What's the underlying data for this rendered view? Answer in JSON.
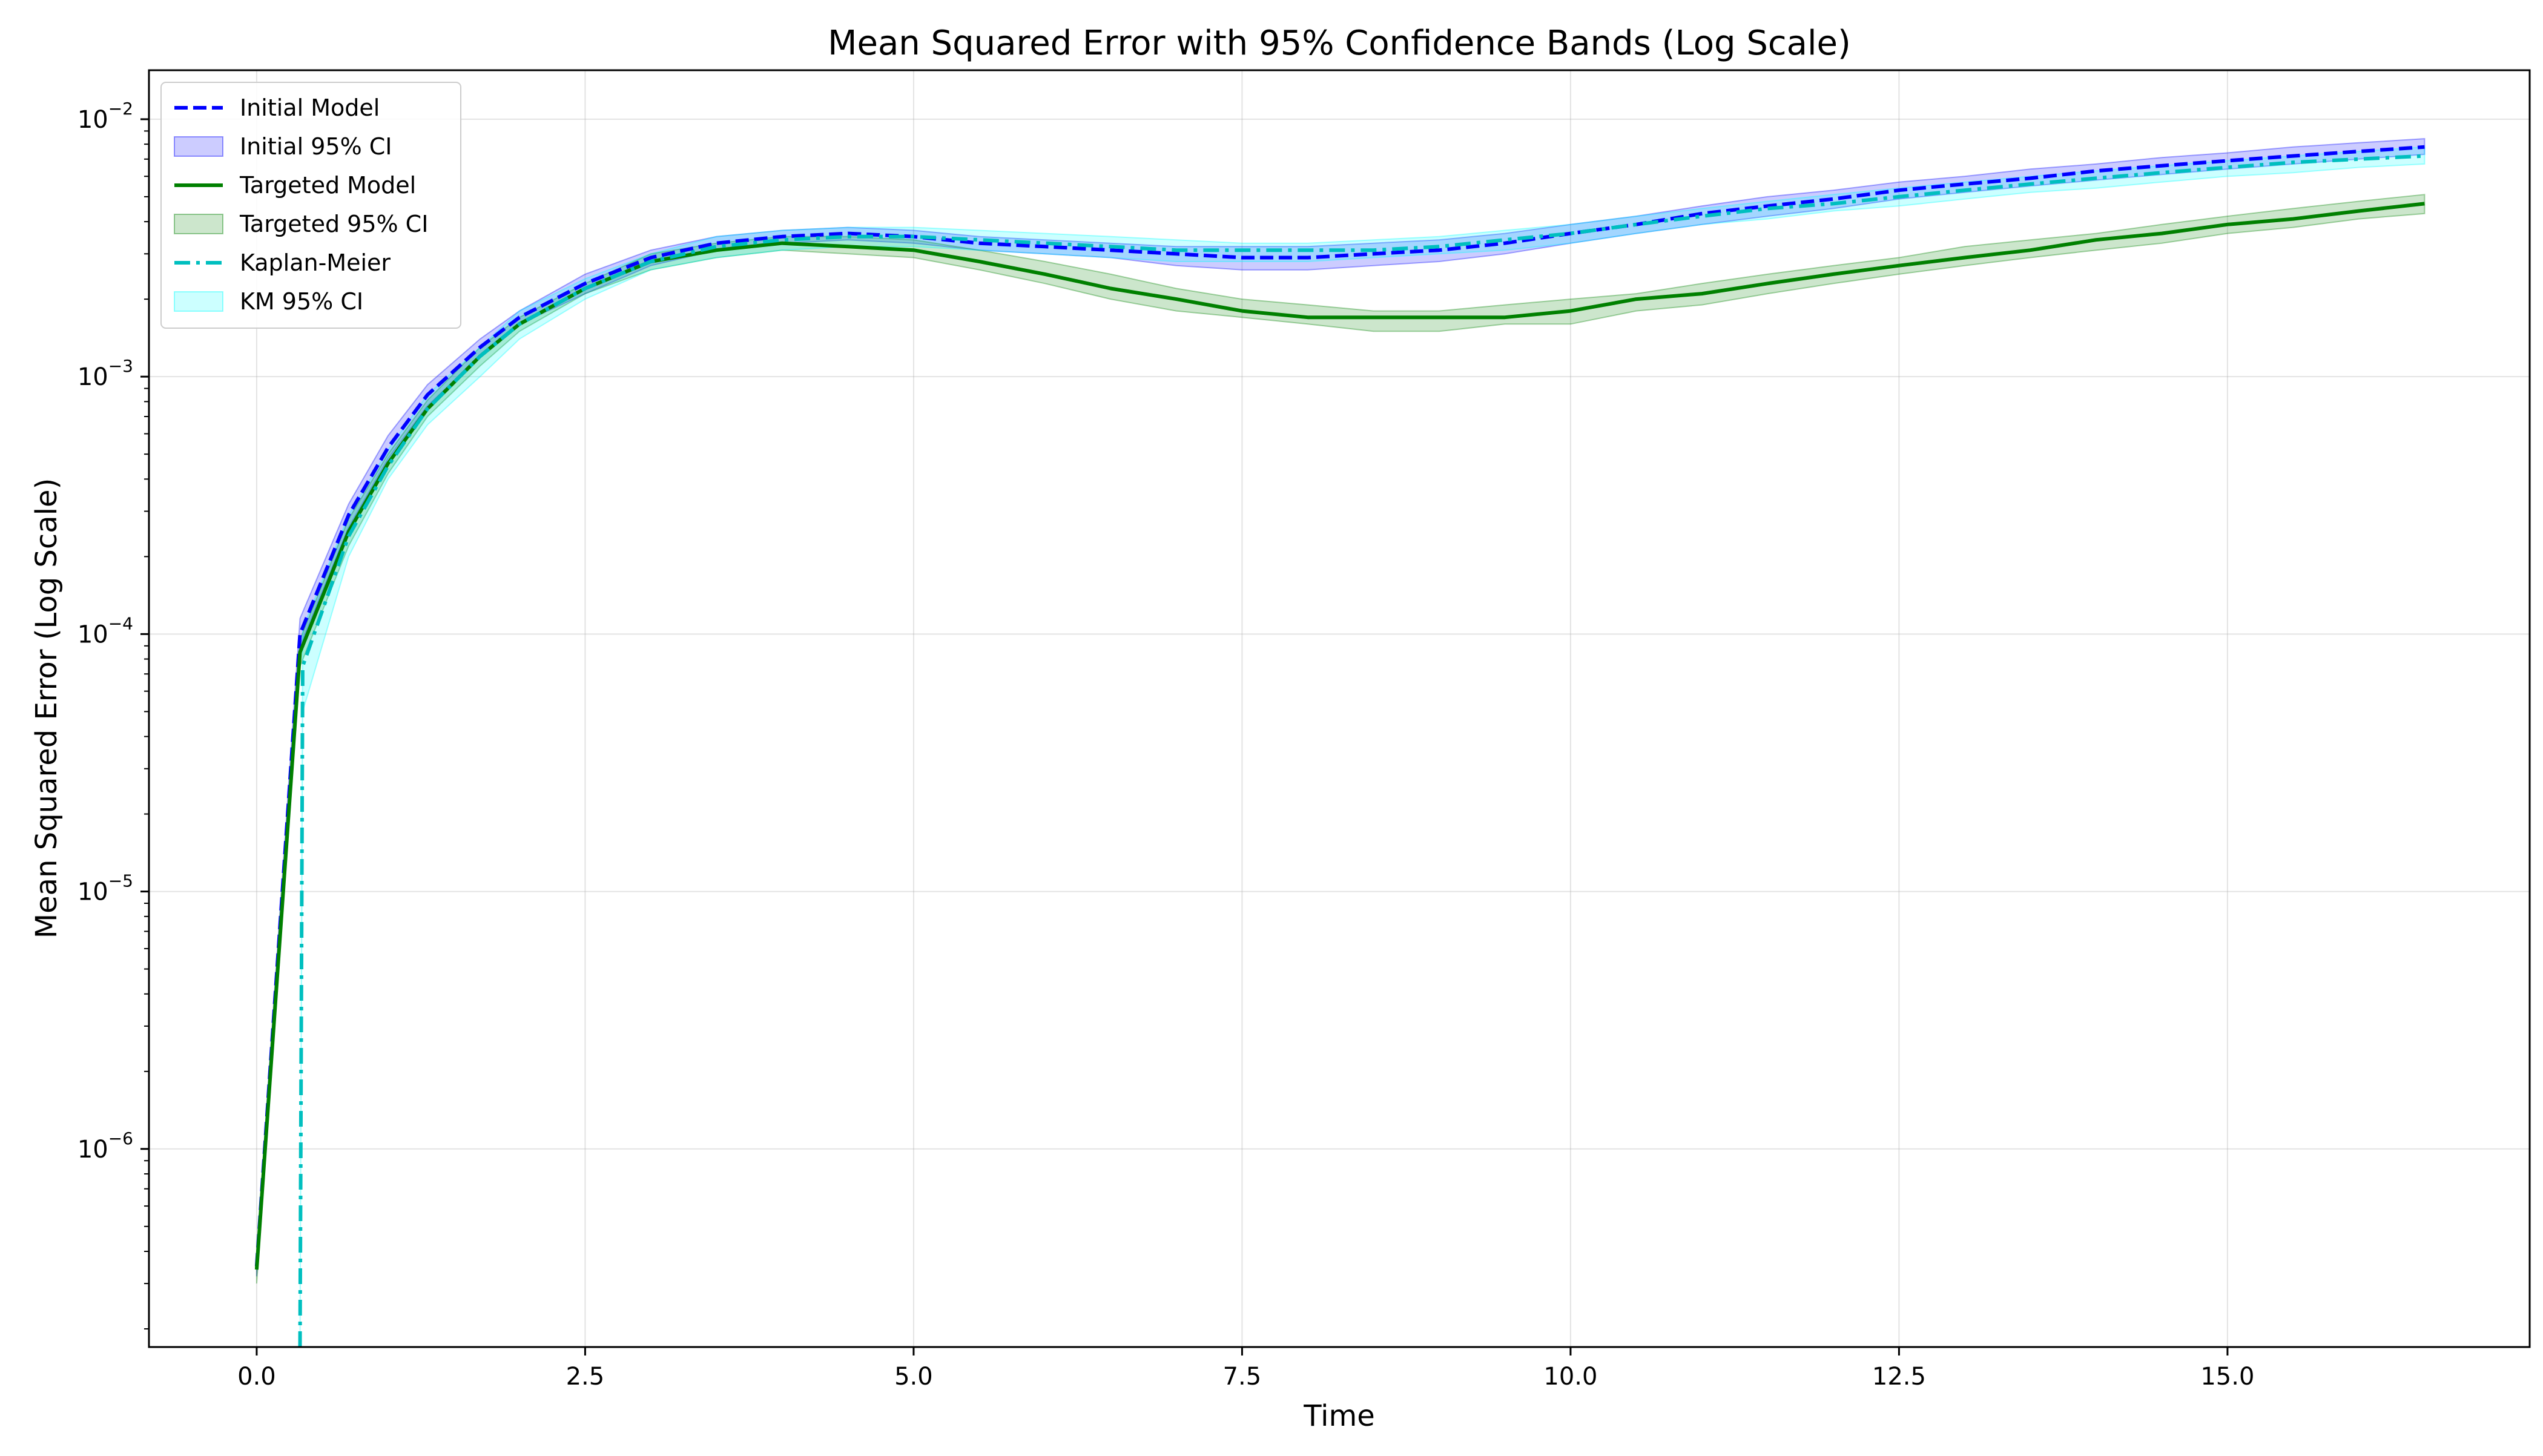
{
  "chart_data": {
    "type": "line",
    "title": "Mean Squared Error with 95% Confidence Bands (Log Scale)",
    "xlabel": "Time",
    "ylabel": "Mean Squared Error (Log Scale)",
    "xlim": [
      -0.82,
      17.3
    ],
    "ylim": [
      1.7e-07,
      0.0155
    ],
    "yscale": "log",
    "grid": true,
    "legend_position": "upper left",
    "x_ticks": [
      0.0,
      2.5,
      5.0,
      7.5,
      10.0,
      12.5,
      15.0
    ],
    "x_tick_labels": [
      "0.0",
      "2.5",
      "5.0",
      "7.5",
      "10.0",
      "12.5",
      "15.0"
    ],
    "y_ticks": [
      {
        "value": 1e-06,
        "base": "10",
        "exp": "−6"
      },
      {
        "value": 1e-05,
        "base": "10",
        "exp": "−5"
      },
      {
        "value": 0.0001,
        "base": "10",
        "exp": "−4"
      },
      {
        "value": 0.001,
        "base": "10",
        "exp": "−3"
      },
      {
        "value": 0.01,
        "base": "10",
        "exp": "−2"
      }
    ],
    "series": [
      {
        "name": "Initial Model",
        "color": "#0000ff",
        "style": "dashed",
        "x": [
          0,
          0.33,
          0.7,
          1.0,
          1.3,
          1.7,
          2.0,
          2.5,
          3.0,
          3.5,
          4.0,
          4.5,
          5.0,
          5.5,
          6.0,
          6.5,
          7.0,
          7.5,
          8.0,
          8.5,
          9.0,
          9.5,
          10.0,
          10.5,
          11.0,
          11.5,
          12.0,
          12.5,
          13.0,
          13.5,
          14.0,
          14.5,
          15.0,
          15.5,
          16.0,
          16.5
        ],
        "y": [
          3.5e-07,
          0.0001,
          0.00029,
          0.00053,
          0.00085,
          0.0013,
          0.0017,
          0.0023,
          0.0029,
          0.0033,
          0.0035,
          0.0036,
          0.0035,
          0.0033,
          0.0032,
          0.0031,
          0.003,
          0.0029,
          0.0029,
          0.003,
          0.0031,
          0.0033,
          0.0036,
          0.0039,
          0.0043,
          0.0046,
          0.0049,
          0.0053,
          0.0056,
          0.0059,
          0.0063,
          0.0066,
          0.0069,
          0.0072,
          0.0075,
          0.0078
        ]
      },
      {
        "name": "Targeted Model",
        "color": "#008000",
        "style": "solid",
        "x": [
          0,
          0.33,
          0.7,
          1.0,
          1.3,
          1.7,
          2.0,
          2.5,
          3.0,
          3.5,
          4.0,
          4.5,
          5.0,
          5.5,
          6.0,
          6.5,
          7.0,
          7.5,
          8.0,
          8.5,
          9.0,
          9.5,
          10.0,
          10.5,
          11.0,
          11.5,
          12.0,
          12.5,
          13.0,
          13.5,
          14.0,
          14.5,
          15.0,
          15.5,
          16.0,
          16.5
        ],
        "y": [
          3.4e-07,
          8.5e-05,
          0.00025,
          0.00046,
          0.00075,
          0.0012,
          0.0016,
          0.0022,
          0.0028,
          0.0031,
          0.0033,
          0.0032,
          0.0031,
          0.0028,
          0.0025,
          0.0022,
          0.002,
          0.0018,
          0.0017,
          0.0017,
          0.0017,
          0.0017,
          0.0018,
          0.002,
          0.0021,
          0.0023,
          0.0025,
          0.0027,
          0.0029,
          0.0031,
          0.0034,
          0.0036,
          0.0039,
          0.0041,
          0.0044,
          0.0047
        ]
      },
      {
        "name": "Kaplan-Meier",
        "color": "#00bfbf",
        "style": "dashdot",
        "x": [
          0.33,
          0.35,
          0.7,
          1.0,
          1.3,
          1.7,
          2.0,
          2.5,
          3.0,
          3.5,
          4.0,
          4.5,
          5.0,
          5.5,
          6.0,
          6.5,
          7.0,
          7.5,
          8.0,
          8.5,
          9.0,
          9.5,
          10.0,
          10.5,
          11.0,
          11.5,
          12.0,
          12.5,
          13.0,
          13.5,
          14.0,
          14.5,
          15.0,
          15.5,
          16.0,
          16.5
        ],
        "y": [
          1.7e-07,
          7.5e-05,
          0.00024,
          0.00045,
          0.00075,
          0.0012,
          0.0016,
          0.0022,
          0.0028,
          0.0032,
          0.0034,
          0.0035,
          0.0035,
          0.0034,
          0.0033,
          0.0032,
          0.0031,
          0.0031,
          0.0031,
          0.0031,
          0.0032,
          0.0034,
          0.0036,
          0.0039,
          0.0042,
          0.0045,
          0.0047,
          0.005,
          0.0053,
          0.0056,
          0.0059,
          0.0062,
          0.0065,
          0.0068,
          0.007,
          0.0072
        ]
      }
    ],
    "bands": [
      {
        "name": "Initial 95% CI",
        "color": "#0000ff",
        "opacity": 0.2,
        "x": [
          0,
          0.33,
          0.7,
          1.0,
          1.3,
          1.7,
          2.0,
          2.5,
          3.0,
          3.5,
          4.0,
          4.5,
          5.0,
          5.5,
          6.0,
          6.5,
          7.0,
          7.5,
          8.0,
          8.5,
          9.0,
          9.5,
          10.0,
          10.5,
          11.0,
          11.5,
          12.0,
          12.5,
          13.0,
          13.5,
          14.0,
          14.5,
          15.0,
          15.5,
          16.0,
          16.5
        ],
        "lower": [
          3.2e-07,
          9e-05,
          0.00026,
          0.00048,
          0.00077,
          0.0012,
          0.0016,
          0.0021,
          0.0027,
          0.0031,
          0.0033,
          0.0034,
          0.0033,
          0.0031,
          0.003,
          0.0029,
          0.0027,
          0.0026,
          0.0026,
          0.0027,
          0.0028,
          0.003,
          0.0033,
          0.0036,
          0.0039,
          0.0042,
          0.0045,
          0.0049,
          0.0052,
          0.0055,
          0.0058,
          0.0061,
          0.0064,
          0.0067,
          0.007,
          0.0073
        ],
        "upper": [
          3.9e-07,
          0.000115,
          0.00032,
          0.00059,
          0.00093,
          0.0014,
          0.0018,
          0.0025,
          0.0031,
          0.0035,
          0.0037,
          0.0038,
          0.0037,
          0.0035,
          0.0034,
          0.0033,
          0.0032,
          0.0032,
          0.0032,
          0.0033,
          0.0034,
          0.0036,
          0.0039,
          0.0042,
          0.0046,
          0.005,
          0.0053,
          0.0057,
          0.006,
          0.0064,
          0.0067,
          0.0071,
          0.0074,
          0.0078,
          0.0081,
          0.0084
        ]
      },
      {
        "name": "Targeted 95% CI",
        "color": "#008000",
        "opacity": 0.2,
        "x": [
          0,
          0.33,
          0.7,
          1.0,
          1.3,
          1.7,
          2.0,
          2.5,
          3.0,
          3.5,
          4.0,
          4.5,
          5.0,
          5.5,
          6.0,
          6.5,
          7.0,
          7.5,
          8.0,
          8.5,
          9.0,
          9.5,
          10.0,
          10.5,
          11.0,
          11.5,
          12.0,
          12.5,
          13.0,
          13.5,
          14.0,
          14.5,
          15.0,
          15.5,
          16.0,
          16.5
        ],
        "lower": [
          3e-07,
          7.5e-05,
          0.00022,
          0.00042,
          0.0007,
          0.0011,
          0.0015,
          0.0021,
          0.0026,
          0.0029,
          0.0031,
          0.003,
          0.0029,
          0.0026,
          0.0023,
          0.002,
          0.0018,
          0.0017,
          0.0016,
          0.0015,
          0.0015,
          0.0016,
          0.0016,
          0.0018,
          0.0019,
          0.0021,
          0.0023,
          0.0025,
          0.0027,
          0.0029,
          0.0031,
          0.0033,
          0.0036,
          0.0038,
          0.0041,
          0.0043
        ],
        "upper": [
          3.8e-07,
          9.5e-05,
          0.00028,
          0.0005,
          0.00081,
          0.0013,
          0.0017,
          0.0023,
          0.003,
          0.0033,
          0.0035,
          0.0035,
          0.0034,
          0.0031,
          0.0028,
          0.0025,
          0.0022,
          0.002,
          0.0019,
          0.0018,
          0.0018,
          0.0019,
          0.002,
          0.0021,
          0.0023,
          0.0025,
          0.0027,
          0.0029,
          0.0032,
          0.0034,
          0.0036,
          0.0039,
          0.0042,
          0.0045,
          0.0048,
          0.0051
        ]
      },
      {
        "name": "KM 95% CI",
        "color": "#00ffff",
        "opacity": 0.2,
        "x": [
          0.33,
          0.35,
          0.7,
          1.0,
          1.3,
          1.7,
          2.0,
          2.5,
          3.0,
          3.5,
          4.0,
          4.5,
          5.0,
          5.5,
          6.0,
          6.5,
          7.0,
          7.5,
          8.0,
          8.5,
          9.0,
          9.5,
          10.0,
          10.5,
          11.0,
          11.5,
          12.0,
          12.5,
          13.0,
          13.5,
          14.0,
          14.5,
          15.0,
          15.5,
          16.0,
          16.5
        ],
        "lower": [
          1.7e-07,
          5e-05,
          0.0002,
          0.0004,
          0.00065,
          0.001,
          0.0014,
          0.002,
          0.0026,
          0.0029,
          0.0031,
          0.0032,
          0.0032,
          0.0031,
          0.003,
          0.0029,
          0.0028,
          0.0028,
          0.0028,
          0.0029,
          0.003,
          0.0031,
          0.0033,
          0.0036,
          0.0039,
          0.0041,
          0.0044,
          0.0046,
          0.0049,
          0.0052,
          0.0054,
          0.0057,
          0.006,
          0.0062,
          0.0065,
          0.0067
        ],
        "upper": [
          1.7e-07,
          0.000105,
          0.00029,
          0.00052,
          0.00085,
          0.0013,
          0.0018,
          0.0024,
          0.003,
          0.0035,
          0.0037,
          0.0038,
          0.0038,
          0.0037,
          0.0036,
          0.0035,
          0.0034,
          0.0033,
          0.0033,
          0.0034,
          0.0035,
          0.0037,
          0.0039,
          0.0042,
          0.0045,
          0.0048,
          0.0051,
          0.0054,
          0.0057,
          0.006,
          0.0063,
          0.0066,
          0.0069,
          0.0072,
          0.0075,
          0.0078
        ]
      }
    ],
    "legend": [
      {
        "label": "Initial Model",
        "kind": "line",
        "color": "#0000ff",
        "style": "dashed"
      },
      {
        "label": "Initial 95% CI",
        "kind": "patch",
        "color": "#0000ff"
      },
      {
        "label": "Targeted Model",
        "kind": "line",
        "color": "#008000",
        "style": "solid"
      },
      {
        "label": "Targeted 95% CI",
        "kind": "patch",
        "color": "#008000"
      },
      {
        "label": "Kaplan-Meier",
        "kind": "line",
        "color": "#00bfbf",
        "style": "dashdot"
      },
      {
        "label": "KM 95% CI",
        "kind": "patch",
        "color": "#00ffff"
      }
    ]
  }
}
